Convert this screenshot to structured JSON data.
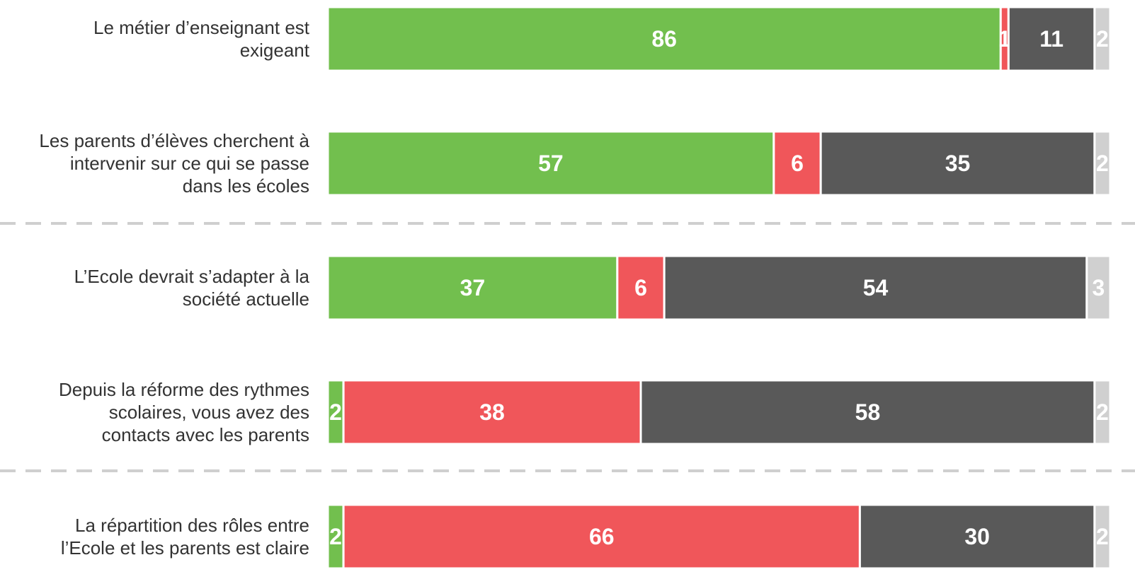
{
  "chart_data": {
    "type": "stacked-bar-horizontal",
    "categories": [
      "Le métier d’enseignant est\nexigeant",
      "Les parents d’élèves cherchent à\nintervenir sur ce qui se passe\ndans les écoles",
      "L’Ecole devrait s’adapter à la\nsociété actuelle",
      "Depuis la réforme des rythmes\nscolaires, vous avez des\ncontacts avec les parents",
      "La répartition des rôles entre\nl’Ecole et les parents est claire"
    ],
    "series": [
      {
        "color": "#72bf4e",
        "values": [
          86,
          57,
          37,
          2,
          2
        ]
      },
      {
        "color": "#f0565a",
        "values": [
          1,
          6,
          6,
          38,
          66
        ]
      },
      {
        "color": "#595959",
        "values": [
          11,
          35,
          54,
          58,
          30
        ]
      },
      {
        "color": "#d0d0d0",
        "values": [
          2,
          2,
          3,
          2,
          2
        ]
      }
    ],
    "xlim": [
      0,
      100
    ]
  }
}
